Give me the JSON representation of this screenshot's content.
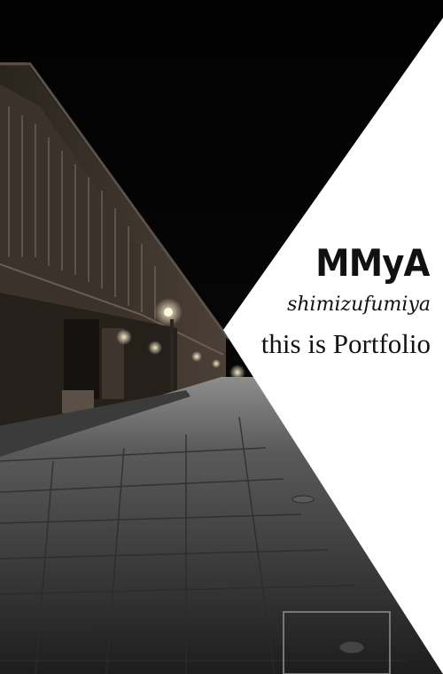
{
  "hero": {
    "brand": "MMyA",
    "subtitle": "shimizufumiya",
    "tagline": "this is Portfolio"
  },
  "colors": {
    "background": "#000000",
    "panel": "#ffffff",
    "text": "#111111"
  }
}
